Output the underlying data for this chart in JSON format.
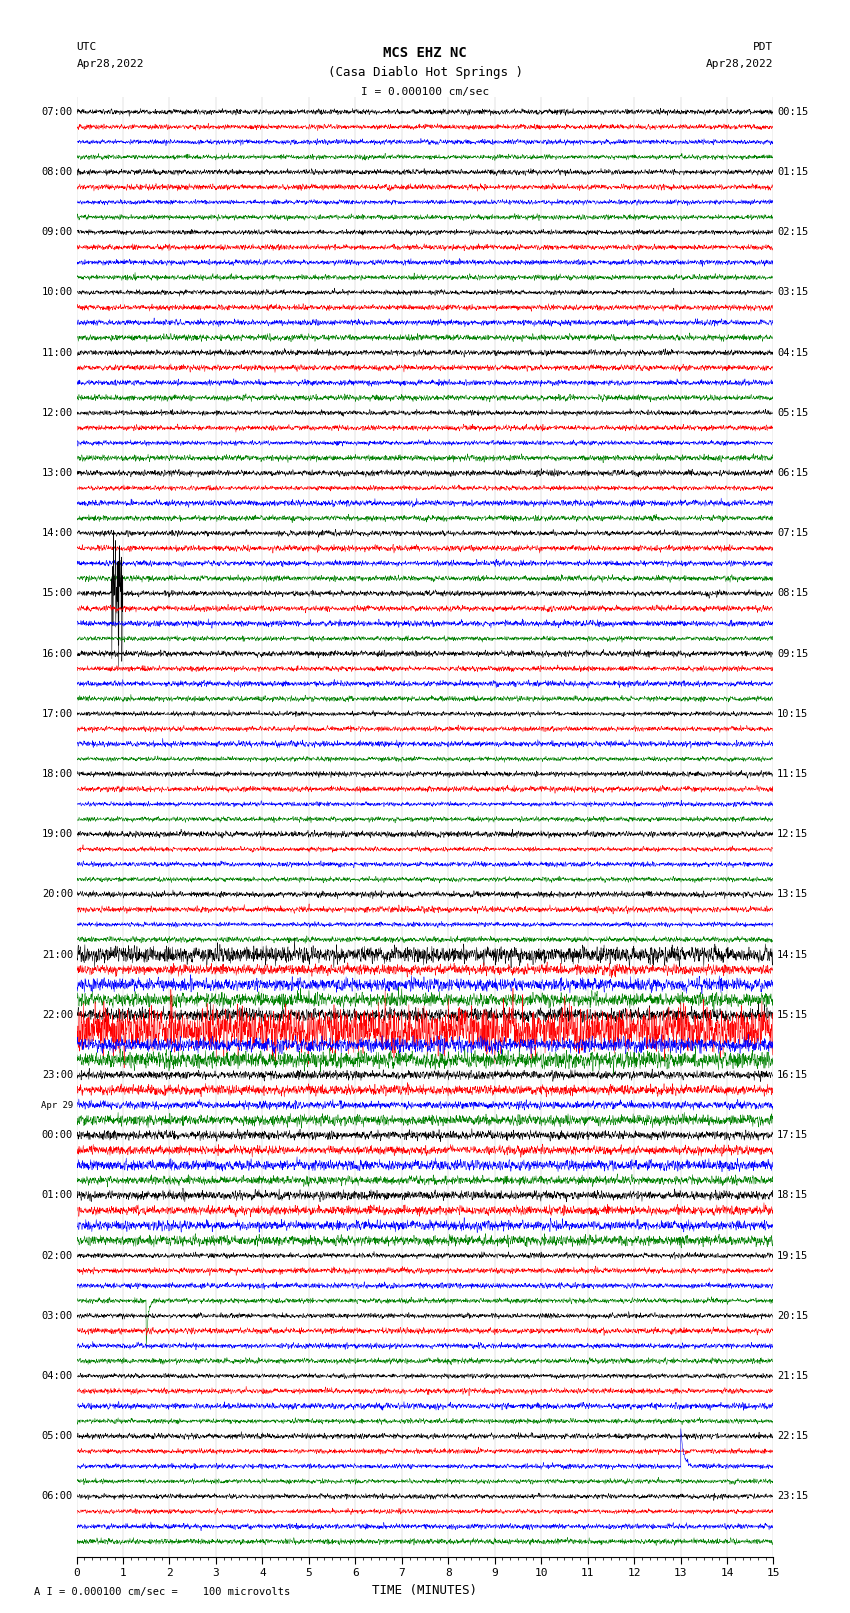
{
  "title_line1": "MCS EHZ NC",
  "title_line2": "(Casa Diablo Hot Springs )",
  "scale_label": "I = 0.000100 cm/sec",
  "utc_label1": "UTC",
  "utc_label2": "Apr28,2022",
  "pdt_label1": "PDT",
  "pdt_label2": "Apr28,2022",
  "xlabel": "TIME (MINUTES)",
  "footer": "A I = 0.000100 cm/sec =    100 microvolts",
  "x_min": 0,
  "x_max": 15,
  "x_ticks": [
    0,
    1,
    2,
    3,
    4,
    5,
    6,
    7,
    8,
    9,
    10,
    11,
    12,
    13,
    14,
    15
  ],
  "left_labels": [
    "07:00",
    "",
    "",
    "",
    "08:00",
    "",
    "",
    "",
    "09:00",
    "",
    "",
    "",
    "10:00",
    "",
    "",
    "",
    "11:00",
    "",
    "",
    "",
    "12:00",
    "",
    "",
    "",
    "13:00",
    "",
    "",
    "",
    "14:00",
    "",
    "",
    "",
    "15:00",
    "",
    "",
    "",
    "16:00",
    "",
    "",
    "",
    "17:00",
    "",
    "",
    "",
    "18:00",
    "",
    "",
    "",
    "19:00",
    "",
    "",
    "",
    "20:00",
    "",
    "",
    "",
    "21:00",
    "",
    "",
    "",
    "22:00",
    "",
    "",
    "",
    "23:00",
    "",
    "",
    "",
    "Apr 29",
    "00:00",
    "",
    "",
    "",
    "01:00",
    "",
    "",
    "",
    "02:00",
    "",
    "",
    "",
    "03:00",
    "",
    "",
    "",
    "04:00",
    "",
    "",
    "",
    "05:00",
    "",
    "",
    "",
    "06:00",
    "",
    "",
    ""
  ],
  "right_labels": [
    "00:15",
    "",
    "",
    "",
    "01:15",
    "",
    "",
    "",
    "02:15",
    "",
    "",
    "",
    "03:15",
    "",
    "",
    "",
    "04:15",
    "",
    "",
    "",
    "05:15",
    "",
    "",
    "",
    "06:15",
    "",
    "",
    "",
    "07:15",
    "",
    "",
    "",
    "08:15",
    "",
    "",
    "",
    "09:15",
    "",
    "",
    "",
    "10:15",
    "",
    "",
    "",
    "11:15",
    "",
    "",
    "",
    "12:15",
    "",
    "",
    "",
    "13:15",
    "",
    "",
    "",
    "14:15",
    "",
    "",
    "",
    "15:15",
    "",
    "",
    "",
    "16:15",
    "",
    "",
    "",
    "17:15",
    "",
    "",
    "",
    "18:15",
    "",
    "",
    "",
    "19:15",
    "",
    "",
    "",
    "20:15",
    "",
    "",
    "",
    "21:15",
    "",
    "",
    "",
    "22:15",
    "",
    "",
    "",
    "23:15",
    "",
    "",
    ""
  ],
  "colors": [
    "black",
    "red",
    "blue",
    "green"
  ],
  "n_groups": 24,
  "traces_per_group": 4,
  "n_points": 3000,
  "bg_color": "white",
  "trace_color_cycle": [
    "black",
    "red",
    "blue",
    "green"
  ],
  "fig_width": 8.5,
  "fig_height": 16.13,
  "dpi": 100,
  "apr29_row": 68
}
